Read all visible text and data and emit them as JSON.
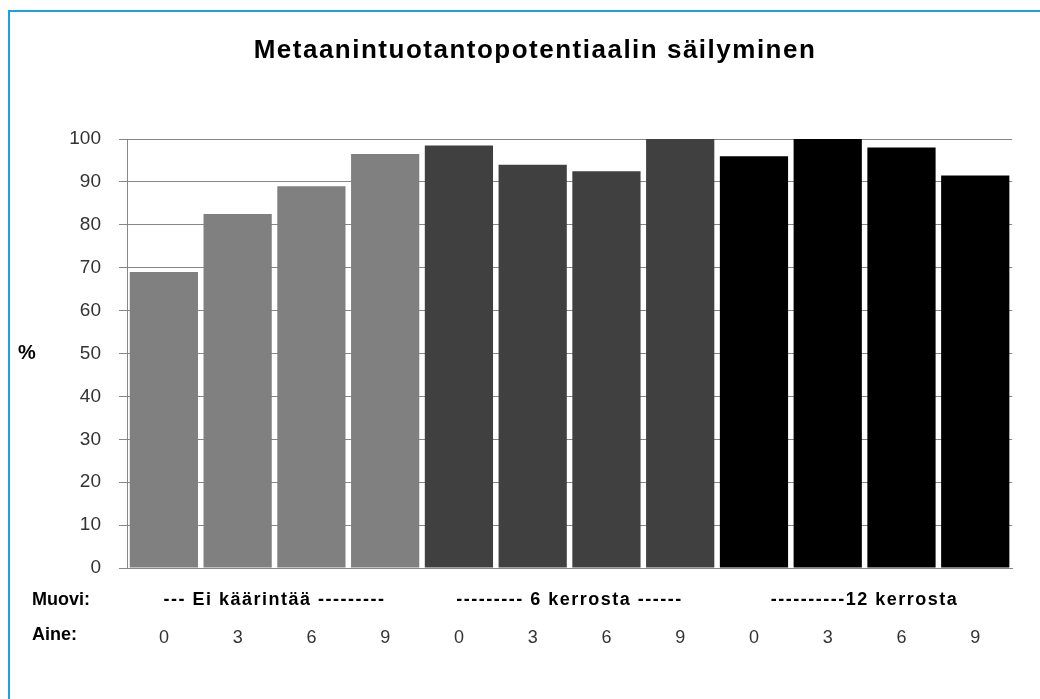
{
  "chart_data": {
    "type": "bar",
    "title": "Metaanintuotantopotentiaalin säilyminen",
    "ylabel": "%",
    "xlabel": "Aine:",
    "categories": [
      "0",
      "3",
      "6",
      "9",
      "0",
      "3",
      "6",
      "9",
      "0",
      "3",
      "6",
      "9"
    ],
    "values": [
      69,
      82.5,
      89,
      96.5,
      98.5,
      94,
      92.5,
      100,
      96,
      100,
      98,
      91.5
    ],
    "colors": [
      "#808080",
      "#808080",
      "#808080",
      "#808080",
      "#404040",
      "#404040",
      "#404040",
      "#404040",
      "#000000",
      "#000000",
      "#000000",
      "#000000"
    ],
    "ylim": [
      0,
      100
    ],
    "yticks": [
      0,
      10,
      20,
      30,
      40,
      50,
      60,
      70,
      80,
      90,
      100
    ],
    "grid": "y",
    "annotations": [
      "Muovi:",
      "--- Ei käärintää ---------",
      "--------- 6 kerrosta ------",
      "----------12 kerrosta"
    ]
  }
}
